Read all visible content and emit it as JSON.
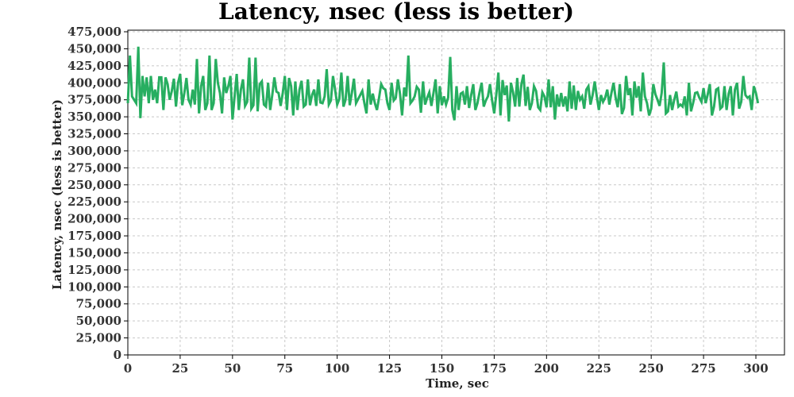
{
  "chart_data": {
    "type": "line",
    "title": "Latency, nsec (less is better)",
    "xlabel": "Time, sec",
    "ylabel": "Latency, nsec (less is better)",
    "xlim": [
      0,
      312
    ],
    "ylim": [
      0,
      475000
    ],
    "x_ticks": [
      0,
      25,
      50,
      75,
      100,
      125,
      150,
      175,
      200,
      225,
      250,
      275,
      300
    ],
    "x_tick_labels": [
      "0",
      "25",
      "50",
      "75",
      "100",
      "125",
      "150",
      "175",
      "200",
      "225",
      "250",
      "275",
      "300"
    ],
    "y_ticks": [
      0,
      25000,
      50000,
      75000,
      100000,
      125000,
      150000,
      175000,
      200000,
      225000,
      250000,
      275000,
      300000,
      325000,
      350000,
      375000,
      400000,
      425000,
      450000,
      475000
    ],
    "y_tick_labels": [
      "0",
      "25,000",
      "50,000",
      "75,000",
      "100,000",
      "125,000",
      "150,000",
      "175,000",
      "200,000",
      "225,000",
      "250,000",
      "275,000",
      "300,000",
      "325,000",
      "350,000",
      "375,000",
      "400,000",
      "425,000",
      "450,000",
      "475,000"
    ],
    "grid": true,
    "series": [
      {
        "name": "",
        "color": "#27ae60",
        "x_start": 0,
        "x_step": 1,
        "values": [
          370000,
          440000,
          380000,
          375000,
          370000,
          453000,
          348000,
          410000,
          380000,
          408000,
          370000,
          410000,
          375000,
          390000,
          370000,
          408000,
          408000,
          360000,
          408000,
          398000,
          375000,
          388000,
          406000,
          365000,
          400000,
          413000,
          367000,
          385000,
          407000,
          375000,
          368000,
          390000,
          368000,
          435000,
          355000,
          395000,
          410000,
          360000,
          370000,
          440000,
          360000,
          370000,
          435000,
          400000,
          385000,
          355000,
          408000,
          385000,
          395000,
          410000,
          346000,
          380000,
          413000,
          360000,
          390000,
          405000,
          366000,
          372000,
          437000,
          362000,
          367000,
          437000,
          358000,
          398000,
          402000,
          368000,
          365000,
          400000,
          360000,
          382000,
          408000,
          387000,
          385000,
          366000,
          385000,
          410000,
          360000,
          407000,
          395000,
          352000,
          402000,
          360000,
          390000,
          403000,
          365000,
          368000,
          405000,
          367000,
          382000,
          390000,
          366000,
          405000,
          371000,
          370000,
          380000,
          420000,
          368000,
          374000,
          410000,
          390000,
          368000,
          376000,
          415000,
          365000,
          375000,
          410000,
          367000,
          385000,
          406000,
          370000,
          376000,
          382000,
          388000,
          370000,
          355000,
          405000,
          368000,
          384000,
          370000,
          360000,
          378000,
          398000,
          392000,
          390000,
          370000,
          360000,
          400000,
          374000,
          378000,
          405000,
          384000,
          352000,
          393000,
          380000,
          440000,
          370000,
          374000,
          380000,
          394000,
          390000,
          356000,
          402000,
          368000,
          378000,
          386000,
          366000,
          385000,
          405000,
          355000,
          395000,
          367000,
          380000,
          368000,
          378000,
          438000,
          360000,
          345000,
          395000,
          360000,
          384000,
          386000,
          368000,
          395000,
          363000,
          382000,
          398000,
          360000,
          370000,
          386000,
          400000,
          365000,
          374000,
          380000,
          398000,
          374000,
          355000,
          383000,
          415000,
          352000,
          404000,
          382000,
          396000,
          343000,
          400000,
          386000,
          365000,
          407000,
          365000,
          398000,
          412000,
          366000,
          394000,
          360000,
          370000,
          395000,
          388000,
          364000,
          360000,
          386000,
          380000,
          364000,
          405000,
          364000,
          395000,
          346000,
          383000,
          365000,
          385000,
          365000,
          380000,
          358000,
          402000,
          362000,
          396000,
          360000,
          388000,
          375000,
          380000,
          362000,
          390000,
          395000,
          368000,
          382000,
          402000,
          380000,
          360000,
          382000,
          372000,
          378000,
          390000,
          368000,
          385000,
          400000,
          378000,
          364000,
          398000,
          354000,
          363000,
          410000,
          382000,
          392000,
          352000,
          402000,
          378000,
          395000,
          358000,
          415000,
          380000,
          370000,
          352000,
          362000,
          398000,
          383000,
          375000,
          366000,
          385000,
          430000,
          355000,
          358000,
          382000,
          360000,
          375000,
          387000,
          365000,
          368000,
          365000,
          380000,
          352000,
          400000,
          358000,
          370000,
          385000,
          386000,
          378000,
          372000,
          392000,
          370000,
          383000,
          398000,
          352000,
          365000,
          390000,
          392000,
          362000,
          365000,
          395000,
          360000,
          384000,
          395000,
          352000,
          390000,
          400000,
          362000,
          372000,
          410000,
          382000,
          378000,
          380000,
          360000,
          395000,
          385000,
          370000
        ]
      }
    ]
  }
}
